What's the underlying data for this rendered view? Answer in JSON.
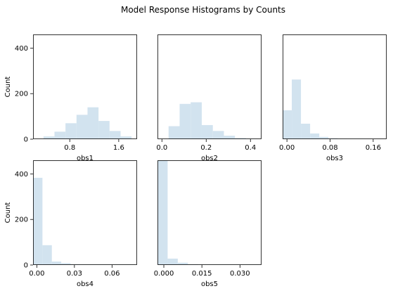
{
  "figure": {
    "title": "Model Response Histograms by Counts"
  },
  "chart_data": [
    {
      "type": "bar",
      "subtype": "histogram",
      "xlabel": "obs1",
      "ylabel": "Count",
      "xlim": [
        0.2,
        1.9
      ],
      "ylim": [
        0,
        460
      ],
      "xticks": [
        0.8,
        1.6
      ],
      "xtick_labels": [
        "0.8",
        "1.6"
      ],
      "yticks": [
        0,
        200,
        400
      ],
      "ytick_labels": [
        "0",
        "200",
        "400"
      ],
      "bin_edges": [
        0.37,
        0.55,
        0.73,
        0.91,
        1.09,
        1.27,
        1.45,
        1.63,
        1.81
      ],
      "values": [
        12,
        33,
        70,
        107,
        140,
        80,
        36,
        12
      ],
      "color": "#d2e3ef"
    },
    {
      "type": "bar",
      "subtype": "histogram",
      "xlabel": "obs2",
      "ylabel": "",
      "xlim": [
        -0.02,
        0.45
      ],
      "ylim": [
        0,
        460
      ],
      "xticks": [
        0.0,
        0.2,
        0.4
      ],
      "xtick_labels": [
        "0.0",
        "0.2",
        "0.4"
      ],
      "yticks": [],
      "ytick_labels": [],
      "bin_edges": [
        0.03,
        0.08,
        0.13,
        0.18,
        0.23,
        0.28,
        0.33,
        0.38,
        0.43
      ],
      "values": [
        57,
        155,
        162,
        62,
        36,
        15,
        5,
        2
      ],
      "color": "#d2e3ef"
    },
    {
      "type": "bar",
      "subtype": "histogram",
      "xlabel": "obs3",
      "ylabel": "",
      "xlim": [
        -0.008,
        0.185
      ],
      "ylim": [
        0,
        460
      ],
      "xticks": [
        0.0,
        0.08,
        0.16
      ],
      "xtick_labels": [
        "0.00",
        "0.08",
        "0.16"
      ],
      "yticks": [],
      "ytick_labels": [],
      "bin_edges": [
        -0.008,
        0.009,
        0.026,
        0.043,
        0.06,
        0.077,
        0.094,
        0.111,
        0.128,
        0.145
      ],
      "values": [
        127,
        262,
        68,
        25,
        10,
        4,
        2,
        1,
        1
      ],
      "color": "#d2e3ef"
    },
    {
      "type": "bar",
      "subtype": "histogram",
      "xlabel": "obs4",
      "ylabel": "Count",
      "xlim": [
        -0.003,
        0.08
      ],
      "ylim": [
        0,
        460
      ],
      "xticks": [
        0.0,
        0.03,
        0.06
      ],
      "xtick_labels": [
        "0.00",
        "0.03",
        "0.06"
      ],
      "yticks": [
        0,
        200,
        400
      ],
      "ytick_labels": [
        "0",
        "200",
        "400"
      ],
      "bin_edges": [
        -0.003,
        0.0045,
        0.012,
        0.0195,
        0.027,
        0.0345,
        0.042,
        0.0495,
        0.057,
        0.0645,
        0.072,
        0.0795
      ],
      "values": [
        383,
        87,
        15,
        8,
        3,
        1,
        1,
        1,
        1,
        1,
        1
      ],
      "color": "#d2e3ef"
    },
    {
      "type": "bar",
      "subtype": "histogram",
      "xlabel": "obs5",
      "ylabel": "",
      "xlim": [
        -0.0025,
        0.0385
      ],
      "ylim": [
        0,
        460
      ],
      "xticks": [
        0.0,
        0.015,
        0.03
      ],
      "xtick_labels": [
        "0.000",
        "0.015",
        "0.030"
      ],
      "yticks": [],
      "ytick_labels": [],
      "bin_edges": [
        -0.0025,
        0.0015,
        0.0055,
        0.0095,
        0.0135,
        0.0175,
        0.0215,
        0.0255,
        0.0295,
        0.0335,
        0.0375
      ],
      "values": [
        460,
        28,
        10,
        3,
        1,
        1,
        1,
        1,
        1,
        1
      ],
      "color": "#d2e3ef"
    }
  ]
}
